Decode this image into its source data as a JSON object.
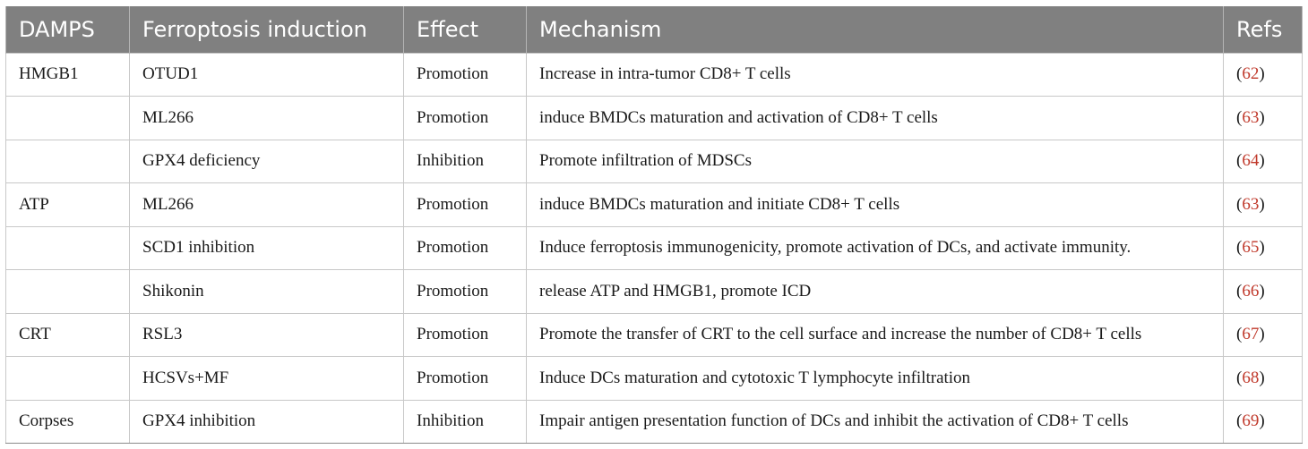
{
  "table": {
    "headers": [
      "DAMPS",
      "Ferroptosis induction",
      "Effect",
      "Mechanism",
      "Refs"
    ],
    "rows": [
      {
        "damps": "HMGB1",
        "induction": "OTUD1",
        "effect": "Promotion",
        "mechanism": "Increase in intra-tumor CD8+ T cells",
        "ref": "62"
      },
      {
        "damps": "",
        "induction": "ML266",
        "effect": "Promotion",
        "mechanism": "induce BMDCs maturation and activation of CD8+ T cells",
        "ref": "63"
      },
      {
        "damps": "",
        "induction": "GPX4 deficiency",
        "effect": "Inhibition",
        "mechanism": "Promote infiltration of MDSCs",
        "ref": "64"
      },
      {
        "damps": "ATP",
        "induction": "ML266",
        "effect": "Promotion",
        "mechanism": "induce BMDCs maturation and initiate CD8+ T cells",
        "ref": "63"
      },
      {
        "damps": "",
        "induction": "SCD1 inhibition",
        "effect": "Promotion",
        "mechanism": "Induce ferroptosis immunogenicity, promote activation of DCs, and activate immunity.",
        "ref": "65"
      },
      {
        "damps": "",
        "induction": "Shikonin",
        "effect": "Promotion",
        "mechanism": "release ATP and HMGB1, promote ICD",
        "ref": "66"
      },
      {
        "damps": "CRT",
        "induction": "RSL3",
        "effect": "Promotion",
        "mechanism": "Promote the transfer of CRT to the cell surface and increase the number of CD8+ T cells",
        "ref": "67"
      },
      {
        "damps": "",
        "induction": "HCSVs+MF",
        "effect": "Promotion",
        "mechanism": "Induce DCs maturation and cytotoxic T lymphocyte infiltration",
        "ref": "68"
      },
      {
        "damps": "Corpses",
        "induction": "GPX4 inhibition",
        "effect": "Inhibition",
        "mechanism": "Impair antigen presentation function of DCs and inhibit the activation of CD8+ T cells",
        "ref": "69"
      }
    ]
  },
  "colors": {
    "header_bg": "#808080",
    "header_text": "#ffffff",
    "ref_link": "#c0392b",
    "border": "#c8c8c8"
  }
}
